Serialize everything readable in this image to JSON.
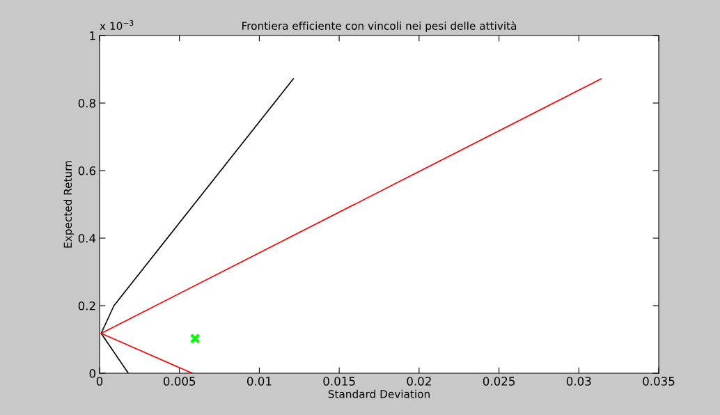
{
  "chart_data": {
    "type": "line",
    "title": "Frontiera efficiente con vincoli nei pesi delle attività",
    "xlabel": "Standard Deviation",
    "ylabel": "Expected Return",
    "annotations": [
      "x 10$^{−3}$"
    ],
    "series": [
      {
        "color": "#000000",
        "x": [
          0.0018,
          0.0001,
          0.0009,
          0.01213
        ],
        "values": [
          0,
          0.118,
          0.2,
          0.872
        ]
      },
      {
        "type": "line",
        "color": "#ff0000",
        "x": [
          0.0058,
          0.0001,
          0.0314
        ],
        "values": [
          0,
          0.118,
          0.872
        ]
      },
      {
        "type": "scatter",
        "color": "#00ff00",
        "marker": "cross",
        "x": [
          0.00598
        ],
        "values": [
          0.103
        ]
      }
    ],
    "xlim": [
      0,
      0.035
    ],
    "xticks": [
      0,
      0.005,
      0.01,
      0.015,
      0.02,
      0.025,
      0.03,
      0.035
    ],
    "ylim": [
      0,
      1
    ],
    "yticks": [
      0,
      0.2,
      0.4,
      0.6,
      0.8,
      1
    ],
    "grid": false,
    "legend": false
  }
}
